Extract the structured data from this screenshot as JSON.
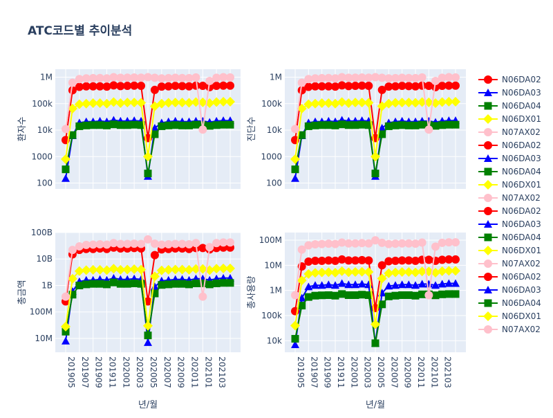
{
  "title": "ATC코드별 추이분석",
  "colors": {
    "N06DA02": "#ff0000",
    "N06DA03": "#0000ff",
    "N06DA04": "#008000",
    "N06DX01": "#ffff00",
    "N07AX02": "#ffc0cb"
  },
  "legend": {
    "placement": "right",
    "entries": [
      "N06DA02",
      "N06DA03",
      "N06DA04",
      "N06DX01",
      "N07AX02",
      "N06DA02",
      "N06DA03",
      "N06DA04",
      "N06DX01",
      "N07AX02",
      "N06DA02",
      "N06DA03",
      "N06DA04",
      "N06DX01",
      "N07AX02",
      "N06DA02",
      "N06DA03",
      "N06DA04",
      "N06DX01",
      "N07AX02"
    ]
  },
  "chart_data": [
    {
      "type": "line",
      "ylabel": "환자수",
      "xlabel": "",
      "yscale": "log",
      "ylim": [
        60,
        2000000
      ],
      "y_tick_values": [
        100,
        1000,
        10000,
        100000,
        1000000
      ],
      "y_tick_labels": [
        "100",
        "1000",
        "10k",
        "100k",
        "1M"
      ],
      "x": [
        "201905",
        "201906",
        "201907",
        "201908",
        "201909",
        "201910",
        "201911",
        "201912",
        "202001",
        "202002",
        "202003",
        "202004",
        "202005",
        "202006",
        "202007",
        "202008",
        "202009",
        "202010",
        "202011",
        "202012",
        "202101",
        "202102",
        "202103",
        "202104",
        "202105"
      ],
      "x_tick_labels": [],
      "grid": true,
      "series": [
        {
          "name": "N06DA02",
          "marker": "circle",
          "values": [
            4200,
            320000,
            430000,
            450000,
            450000,
            450000,
            440000,
            490000,
            460000,
            470000,
            480000,
            470000,
            5000,
            330000,
            440000,
            450000,
            470000,
            460000,
            450000,
            480000,
            470000,
            420000,
            470000,
            480000,
            480000
          ]
        },
        {
          "name": "N06DA03",
          "marker": "triangle-up",
          "values": [
            150,
            6200,
            19000,
            21000,
            21000,
            22000,
            21000,
            24000,
            22000,
            22000,
            23000,
            22000,
            180,
            12000,
            19000,
            21000,
            22000,
            21000,
            21000,
            22000,
            22000,
            20000,
            22000,
            23000,
            23000
          ]
        },
        {
          "name": "N06DA04",
          "marker": "square",
          "values": [
            330,
            6500,
            14000,
            15000,
            15500,
            15500,
            15000,
            16500,
            15500,
            15500,
            16000,
            15500,
            230,
            7000,
            14000,
            15000,
            15500,
            15000,
            15000,
            16000,
            15500,
            14500,
            15500,
            16000,
            16000
          ]
        },
        {
          "name": "N06DX01",
          "marker": "diamond",
          "values": [
            800,
            65000,
            95000,
            100000,
            105000,
            105000,
            100000,
            115000,
            105000,
            110000,
            110000,
            108000,
            1000,
            80000,
            100000,
            108000,
            110000,
            110000,
            108000,
            115000,
            112000,
            105000,
            115000,
            118000,
            118000
          ]
        },
        {
          "name": "N07AX02",
          "marker": "circle",
          "values": [
            11000,
            620000,
            850000,
            900000,
            920000,
            930000,
            900000,
            1000000,
            950000,
            960000,
            970000,
            960000,
            1000000,
            950000,
            900000,
            920000,
            950000,
            930000,
            920000,
            980000,
            10500,
            720000,
            950000,
            1000000,
            980000
          ]
        }
      ]
    },
    {
      "type": "line",
      "ylabel": "진단수",
      "xlabel": "",
      "yscale": "log",
      "ylim": [
        60,
        2000000
      ],
      "y_tick_values": [
        100,
        1000,
        10000,
        100000,
        1000000
      ],
      "y_tick_labels": [
        "100",
        "1000",
        "10k",
        "100k",
        "1M"
      ],
      "x": [
        "201905",
        "201906",
        "201907",
        "201908",
        "201909",
        "201910",
        "201911",
        "201912",
        "202001",
        "202002",
        "202003",
        "202004",
        "202005",
        "202006",
        "202007",
        "202008",
        "202009",
        "202010",
        "202011",
        "202012",
        "202101",
        "202102",
        "202103",
        "202104",
        "202105"
      ],
      "x_tick_labels": [],
      "grid": true,
      "series": [
        {
          "name": "N06DA02",
          "marker": "circle",
          "values": [
            4200,
            320000,
            430000,
            450000,
            450000,
            450000,
            440000,
            490000,
            460000,
            470000,
            480000,
            470000,
            5000,
            330000,
            440000,
            450000,
            470000,
            460000,
            450000,
            480000,
            470000,
            420000,
            470000,
            480000,
            480000
          ]
        },
        {
          "name": "N06DA03",
          "marker": "triangle-up",
          "values": [
            150,
            6200,
            19000,
            21000,
            21000,
            22000,
            21000,
            24000,
            22000,
            22000,
            23000,
            22000,
            180,
            12000,
            19000,
            21000,
            22000,
            21000,
            21000,
            22000,
            22000,
            20000,
            22000,
            23000,
            23000
          ]
        },
        {
          "name": "N06DA04",
          "marker": "square",
          "values": [
            330,
            6500,
            14000,
            15000,
            15500,
            15500,
            15000,
            16500,
            15500,
            15500,
            16000,
            15500,
            230,
            7000,
            14000,
            15000,
            15500,
            15000,
            15000,
            16000,
            15500,
            14500,
            15500,
            16000,
            16000
          ]
        },
        {
          "name": "N06DX01",
          "marker": "diamond",
          "values": [
            800,
            65000,
            95000,
            100000,
            105000,
            105000,
            100000,
            115000,
            105000,
            110000,
            110000,
            108000,
            1000,
            80000,
            100000,
            108000,
            110000,
            110000,
            108000,
            115000,
            112000,
            105000,
            115000,
            118000,
            118000
          ]
        },
        {
          "name": "N07AX02",
          "marker": "circle",
          "values": [
            11000,
            620000,
            850000,
            900000,
            920000,
            930000,
            900000,
            1000000,
            950000,
            960000,
            970000,
            960000,
            1000000,
            950000,
            900000,
            920000,
            950000,
            930000,
            920000,
            980000,
            10500,
            720000,
            950000,
            1000000,
            980000
          ]
        }
      ]
    },
    {
      "type": "line",
      "ylabel": "총금액",
      "xlabel": "년/월",
      "yscale": "log",
      "ylim": [
        3000000,
        100000000000
      ],
      "y_tick_values": [
        10000000,
        100000000,
        1000000000,
        10000000000,
        100000000000
      ],
      "y_tick_labels": [
        "10M",
        "100M",
        "1B",
        "10B",
        "100B"
      ],
      "x": [
        "201905",
        "201906",
        "201907",
        "201908",
        "201909",
        "201910",
        "201911",
        "201912",
        "202001",
        "202002",
        "202003",
        "202004",
        "202005",
        "202006",
        "202007",
        "202008",
        "202009",
        "202010",
        "202011",
        "202012",
        "202101",
        "202102",
        "202103",
        "202104",
        "202105"
      ],
      "x_tick_labels": [
        "201905",
        "201907",
        "201909",
        "201911",
        "202001",
        "202003",
        "202005",
        "202007",
        "202009",
        "202011",
        "202101",
        "202103"
      ],
      "grid": true,
      "series": [
        {
          "name": "N06DA02",
          "marker": "circle",
          "values": [
            250000000,
            15000000000,
            22000000000,
            24000000000,
            24000000000,
            25000000000,
            24000000000,
            27000000000,
            25000000000,
            25000000000,
            26000000000,
            25000000000,
            250000000,
            14000000000,
            23000000000,
            24000000000,
            25000000000,
            25000000000,
            24000000000,
            26000000000,
            26000000000,
            23000000000,
            26000000000,
            27000000000,
            27000000000
          ]
        },
        {
          "name": "N06DA03",
          "marker": "triangle-up",
          "values": [
            8000000,
            600000000,
            1400000000,
            1600000000,
            1600000000,
            1700000000,
            1600000000,
            1900000000,
            1700000000,
            1700000000,
            1800000000,
            1700000000,
            7000000,
            900000000,
            1500000000,
            1600000000,
            1700000000,
            1700000000,
            1600000000,
            1800000000,
            1800000000,
            1600000000,
            1800000000,
            1900000000,
            1900000000
          ]
        },
        {
          "name": "N06DA04",
          "marker": "square",
          "values": [
            18000000,
            450000000,
            1000000000,
            1100000000,
            1150000000,
            1150000000,
            1100000000,
            1300000000,
            1150000000,
            1150000000,
            1200000000,
            1150000000,
            13000000,
            500000000,
            1050000000,
            1100000000,
            1150000000,
            1150000000,
            1100000000,
            1200000000,
            1200000000,
            1100000000,
            1200000000,
            1250000000,
            1250000000
          ]
        },
        {
          "name": "N06DX01",
          "marker": "diamond",
          "values": [
            28000000,
            1800000000,
            3500000000,
            3800000000,
            3900000000,
            3900000000,
            3800000000,
            4300000000,
            3900000000,
            4000000000,
            4100000000,
            4000000000,
            30000000,
            2200000000,
            3700000000,
            3900000000,
            4000000000,
            4000000000,
            3900000000,
            4200000000,
            4200000000,
            3800000000,
            4300000000,
            4400000000,
            4400000000
          ]
        },
        {
          "name": "N07AX02",
          "marker": "circle",
          "values": [
            380000000,
            22000000000,
            30000000000,
            34000000000,
            35000000000,
            36000000000,
            35000000000,
            40000000000,
            37000000000,
            37000000000,
            38000000000,
            37000000000,
            55000000000,
            38000000000,
            35000000000,
            36000000000,
            37000000000,
            37000000000,
            36000000000,
            40000000000,
            380000000,
            28000000000,
            40000000000,
            42000000000,
            42000000000
          ]
        }
      ]
    },
    {
      "type": "line",
      "ylabel": "총사용량",
      "xlabel": "년/월",
      "yscale": "log",
      "ylim": [
        3500,
        200000000
      ],
      "y_tick_values": [
        10000,
        100000,
        1000000,
        10000000,
        100000000
      ],
      "y_tick_labels": [
        "10k",
        "100k",
        "1M",
        "10M",
        "100M"
      ],
      "x": [
        "201905",
        "201906",
        "201907",
        "201908",
        "201909",
        "201910",
        "201911",
        "201912",
        "202001",
        "202002",
        "202003",
        "202004",
        "202005",
        "202006",
        "202007",
        "202008",
        "202009",
        "202010",
        "202011",
        "202012",
        "202101",
        "202102",
        "202103",
        "202104",
        "202105"
      ],
      "x_tick_labels": [
        "201905",
        "201907",
        "201909",
        "201911",
        "202001",
        "202003",
        "202005",
        "202007",
        "202009",
        "202011",
        "202101",
        "202103"
      ],
      "grid": true,
      "series": [
        {
          "name": "N06DA02",
          "marker": "circle",
          "values": [
            150000,
            9000000,
            14000000,
            15000000,
            15000000,
            15500000,
            15000000,
            17000000,
            15500000,
            15500000,
            16000000,
            15500000,
            200000,
            10000000,
            14500000,
            15000000,
            15500000,
            15500000,
            15000000,
            16500000,
            16500000,
            15000000,
            16500000,
            17000000,
            17000000
          ]
        },
        {
          "name": "N06DA03",
          "marker": "triangle-up",
          "values": [
            7000,
            500000,
            1400000,
            1600000,
            1600000,
            1700000,
            1600000,
            1900000,
            1700000,
            1700000,
            1800000,
            1700000,
            8000,
            800000,
            1500000,
            1600000,
            1700000,
            1700000,
            1600000,
            1800000,
            1800000,
            1600000,
            1800000,
            1900000,
            1900000
          ]
        },
        {
          "name": "N06DA04",
          "marker": "square",
          "values": [
            12000,
            250000,
            550000,
            620000,
            640000,
            650000,
            620000,
            720000,
            650000,
            650000,
            680000,
            650000,
            8000,
            280000,
            580000,
            620000,
            650000,
            650000,
            620000,
            700000,
            700000,
            640000,
            700000,
            720000,
            720000
          ]
        },
        {
          "name": "N06DX01",
          "marker": "diamond",
          "values": [
            40000,
            2500000,
            4500000,
            5000000,
            5200000,
            5300000,
            5100000,
            5800000,
            5300000,
            5400000,
            5500000,
            5400000,
            45000,
            3000000,
            4800000,
            5200000,
            5400000,
            5400000,
            5200000,
            5700000,
            5700000,
            5100000,
            5800000,
            6000000,
            6000000
          ]
        },
        {
          "name": "N07AX02",
          "marker": "circle",
          "values": [
            650000,
            42000000,
            62000000,
            68000000,
            70000000,
            72000000,
            70000000,
            80000000,
            74000000,
            74000000,
            76000000,
            74000000,
            98000000,
            78000000,
            70000000,
            72000000,
            74000000,
            74000000,
            72000000,
            80000000,
            650000,
            55000000,
            78000000,
            82000000,
            82000000
          ]
        }
      ]
    }
  ]
}
